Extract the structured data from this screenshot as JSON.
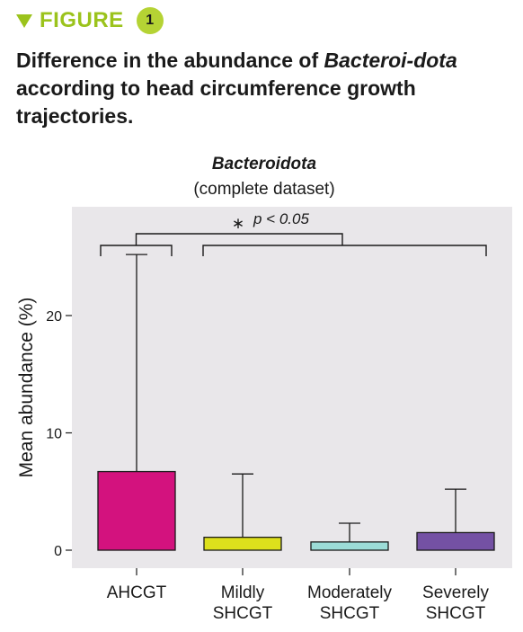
{
  "header": {
    "figure_label": "FIGURE",
    "figure_number": "1",
    "title_part1": "Difference in the abundance of ",
    "title_italic": "Bacteroi-dota",
    "title_part2": " according to head circumference growth trajectories."
  },
  "colors": {
    "accent": "#9bc31c",
    "plot_background": "#e9e7ea"
  },
  "chart_data": {
    "type": "bar",
    "title": "Bacteroidota",
    "subtitle": "(complete dataset)",
    "ylabel": "Mean abundance (%)",
    "xlabel": "",
    "ylim": [
      -1.3,
      29
    ],
    "yticks": [
      0,
      10,
      20
    ],
    "categories": [
      "AHCGT",
      "Mildly SHCGT",
      "Moderately SHCGT",
      "Severely SHCGT"
    ],
    "category_lines": [
      [
        "AHCGT"
      ],
      [
        "Mildly",
        "SHCGT"
      ],
      [
        "Moderately",
        "SHCGT"
      ],
      [
        "Severely",
        "SHCGT"
      ]
    ],
    "values": [
      6.7,
      1.1,
      0.7,
      1.5
    ],
    "error_upper": [
      25.2,
      6.5,
      2.3,
      5.2
    ],
    "colors": [
      "#d3127e",
      "#dde01c",
      "#9cdcd7",
      "#7451a4"
    ],
    "annotation": {
      "star": "∗",
      "text": "p < 0.05",
      "left_group": [
        0
      ],
      "right_group": [
        1,
        2,
        3
      ]
    },
    "grid": false,
    "legend": "none"
  }
}
